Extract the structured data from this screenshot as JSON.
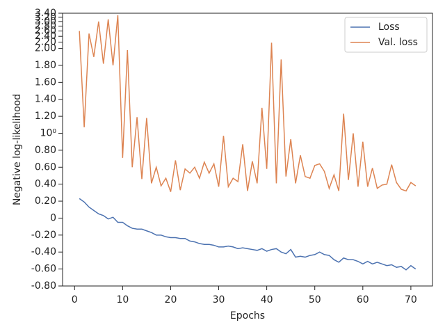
{
  "chart_data": {
    "type": "line",
    "xlabel": "Epochs",
    "ylabel": "Negative log-likelihood",
    "x": [
      1,
      2,
      3,
      4,
      5,
      6,
      7,
      8,
      9,
      10,
      11,
      12,
      13,
      14,
      15,
      16,
      17,
      18,
      19,
      20,
      21,
      22,
      23,
      24,
      25,
      26,
      27,
      28,
      29,
      30,
      31,
      32,
      33,
      34,
      35,
      36,
      37,
      38,
      39,
      40,
      41,
      42,
      43,
      44,
      45,
      46,
      47,
      48,
      49,
      50,
      51,
      52,
      53,
      54,
      55,
      56,
      57,
      58,
      59,
      60,
      61,
      62,
      63,
      64,
      65,
      66,
      67,
      68,
      69,
      70,
      71
    ],
    "series": [
      {
        "name": "Loss",
        "color": "#4c72b0",
        "values": [
          0.23,
          0.19,
          0.13,
          0.09,
          0.05,
          0.03,
          -0.01,
          0.01,
          -0.05,
          -0.05,
          -0.09,
          -0.12,
          -0.13,
          -0.13,
          -0.15,
          -0.17,
          -0.2,
          -0.2,
          -0.22,
          -0.23,
          -0.23,
          -0.24,
          -0.24,
          -0.27,
          -0.28,
          -0.3,
          -0.31,
          -0.31,
          -0.32,
          -0.34,
          -0.34,
          -0.33,
          -0.34,
          -0.36,
          -0.35,
          -0.36,
          -0.37,
          -0.38,
          -0.36,
          -0.39,
          -0.37,
          -0.36,
          -0.4,
          -0.42,
          -0.37,
          -0.46,
          -0.45,
          -0.46,
          -0.44,
          -0.43,
          -0.4,
          -0.43,
          -0.44,
          -0.49,
          -0.52,
          -0.47,
          -0.49,
          -0.49,
          -0.51,
          -0.54,
          -0.51,
          -0.54,
          -0.52,
          -0.54,
          -0.56,
          -0.55,
          -0.58,
          -0.57,
          -0.61,
          -0.56,
          -0.6
        ]
      },
      {
        "name": "Val. loss",
        "color": "#dd8452",
        "values": [
          2.6,
          1.07,
          2.5,
          1.9,
          3.0,
          1.82,
          3.1,
          1.8,
          3.3,
          0.71,
          1.98,
          0.6,
          1.19,
          0.46,
          1.18,
          0.41,
          0.6,
          0.38,
          0.47,
          0.31,
          0.68,
          0.33,
          0.58,
          0.53,
          0.6,
          0.47,
          0.66,
          0.53,
          0.64,
          0.37,
          0.97,
          0.37,
          0.47,
          0.43,
          0.87,
          0.32,
          0.67,
          0.41,
          1.3,
          0.58,
          2.18,
          0.41,
          1.87,
          0.49,
          0.93,
          0.41,
          0.74,
          0.49,
          0.47,
          0.62,
          0.64,
          0.55,
          0.35,
          0.51,
          0.32,
          1.23,
          0.45,
          1.0,
          0.37,
          0.9,
          0.37,
          0.59,
          0.35,
          0.39,
          0.4,
          0.63,
          0.42,
          0.34,
          0.32,
          0.42,
          0.38
        ]
      }
    ],
    "xlim": [
      -2.5,
      74.5
    ],
    "xticks": [
      0,
      10,
      20,
      30,
      40,
      50,
      60,
      70
    ],
    "ylim": [
      -0.8,
      3.4
    ],
    "yscale": "symlog",
    "linthresh": 2,
    "yticks": [
      {
        "value": -0.8,
        "label": "-0.80"
      },
      {
        "value": -0.6,
        "label": "-0.60"
      },
      {
        "value": -0.4,
        "label": "-0.40"
      },
      {
        "value": -0.2,
        "label": "-0.20"
      },
      0,
      {
        "value": 0.2,
        "label": "0.20"
      },
      {
        "value": 0.4,
        "label": "0.40"
      },
      {
        "value": 0.6,
        "label": "0.60"
      },
      {
        "value": 0.8,
        "label": "0.80"
      },
      {
        "value": 1,
        "label": "10⁰"
      },
      {
        "value": 1.2,
        "label": "1.20"
      },
      {
        "value": 1.4,
        "label": "1.40"
      },
      {
        "value": 1.6,
        "label": "1.60"
      },
      {
        "value": 1.8,
        "label": "1.80"
      },
      {
        "value": 2,
        "label": "2.00"
      },
      {
        "value": 2.2,
        "label": "2.20"
      },
      {
        "value": 2.4,
        "label": "2.40"
      },
      {
        "value": 2.6,
        "label": "2.60"
      },
      {
        "value": 2.8,
        "label": "2.80"
      },
      {
        "value": 3,
        "label": "3.00"
      },
      {
        "value": 3.2,
        "label": "3.20"
      },
      {
        "value": 3.4,
        "label": "3.40"
      }
    ],
    "legend": "upper right"
  }
}
